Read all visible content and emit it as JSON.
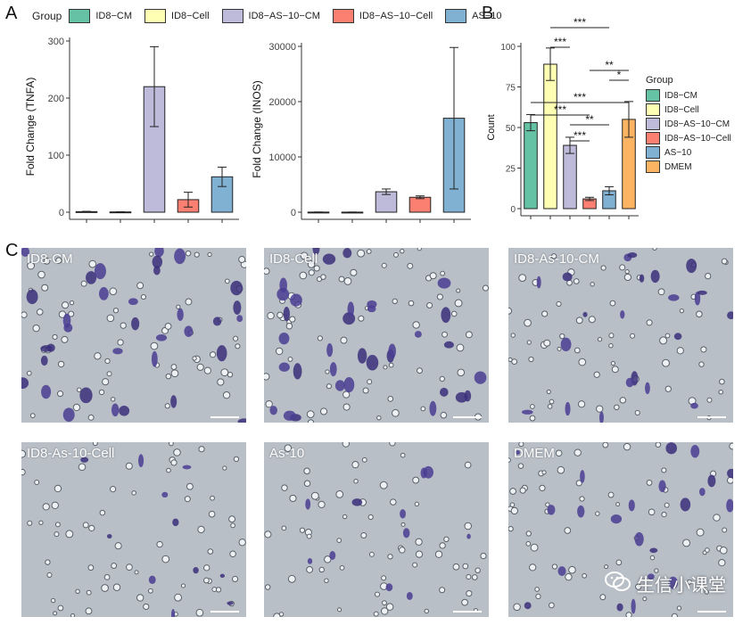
{
  "panels": {
    "A": "A",
    "B": "B",
    "C": "C"
  },
  "legend_top": {
    "title": "Group",
    "items": [
      {
        "label": "ID8−CM",
        "color": "#66C2A5"
      },
      {
        "label": "ID8−Cell",
        "color": "#FFFFB3"
      },
      {
        "label": "ID8−AS−10−CM",
        "color": "#BEBADA"
      },
      {
        "label": "ID8−AS−10−Cell",
        "color": "#FB8072"
      },
      {
        "label": "AS−10",
        "color": "#80B1D3"
      }
    ]
  },
  "legend_b": {
    "title": "Group",
    "items": [
      {
        "label": "ID8−CM",
        "color": "#66C2A5"
      },
      {
        "label": "ID8−Cell",
        "color": "#FFFFB3"
      },
      {
        "label": "ID8−AS−10−CM",
        "color": "#BEBADA"
      },
      {
        "label": "ID8−AS−10−Cell",
        "color": "#FB8072"
      },
      {
        "label": "AS−10",
        "color": "#80B1D3"
      },
      {
        "label": "DMEM",
        "color": "#FDB462"
      }
    ]
  },
  "chart_data": [
    {
      "id": "tnfa",
      "type": "bar",
      "ylabel": "Fold Change (TNFA)",
      "xlabel": "",
      "ylim": [
        0,
        300
      ],
      "yticks": [
        0,
        100,
        200,
        300
      ],
      "categories": [
        "ID8−CM",
        "ID8−Cell",
        "ID8−AS−10−CM",
        "ID8−AS−10−Cell",
        "AS−10"
      ],
      "values": [
        1,
        0.5,
        220,
        22,
        62
      ],
      "errors": [
        0.5,
        0.3,
        70,
        13,
        17
      ],
      "colors": [
        "#66C2A5",
        "#FFFFB3",
        "#BEBADA",
        "#FB8072",
        "#80B1D3"
      ]
    },
    {
      "id": "inos",
      "type": "bar",
      "ylabel": "Fold Change (INOS)",
      "xlabel": "",
      "ylim": [
        0,
        30000
      ],
      "yticks": [
        0,
        10000,
        20000,
        30000
      ],
      "categories": [
        "ID8−CM",
        "ID8−Cell",
        "ID8−AS−10−CM",
        "ID8−AS−10−Cell",
        "AS−10"
      ],
      "values": [
        20,
        15,
        3700,
        2700,
        17000
      ],
      "errors": [
        10,
        8,
        500,
        250,
        12800
      ],
      "colors": [
        "#66C2A5",
        "#FFFFB3",
        "#BEBADA",
        "#FB8072",
        "#80B1D3"
      ]
    },
    {
      "id": "count",
      "type": "bar",
      "ylabel": "Count",
      "xlabel": "",
      "ylim": [
        0,
        100
      ],
      "yticks": [
        0,
        25,
        50,
        75,
        100
      ],
      "categories": [
        "ID8−CM",
        "ID8−Cell",
        "ID8−AS−10−CM",
        "ID8−AS−10−Cell",
        "AS−10",
        "DMEM"
      ],
      "values": [
        53,
        89,
        39,
        6,
        11,
        55
      ],
      "errors": [
        5,
        10,
        5,
        1,
        2.5,
        11
      ],
      "colors": [
        "#66C2A5",
        "#FFFFB3",
        "#BEBADA",
        "#FB8072",
        "#80B1D3",
        "#FDB462"
      ],
      "significance": [
        {
          "from": 1,
          "to": 4,
          "label": "***"
        },
        {
          "from": 1,
          "to": 2,
          "label": "***"
        },
        {
          "from": 3,
          "to": 5,
          "label": "**"
        },
        {
          "from": 4,
          "to": 5,
          "label": "*"
        },
        {
          "from": 0,
          "to": 5,
          "label": "***"
        },
        {
          "from": 0,
          "to": 3,
          "label": "***"
        },
        {
          "from": 2,
          "to": 4,
          "label": "**"
        },
        {
          "from": 2,
          "to": 3,
          "label": "***"
        }
      ]
    }
  ],
  "micrographs": [
    {
      "label": "ID8-CM",
      "density": "high"
    },
    {
      "label": "ID8-Cell",
      "density": "high"
    },
    {
      "label": "ID8-As-10-CM",
      "density": "medium"
    },
    {
      "label": "ID8-As-10-Cell",
      "density": "low"
    },
    {
      "label": "As-10",
      "density": "low"
    },
    {
      "label": "DMEM",
      "density": "medium"
    }
  ],
  "watermark": {
    "icon": "wechat-icon",
    "text": "生信小课堂"
  }
}
